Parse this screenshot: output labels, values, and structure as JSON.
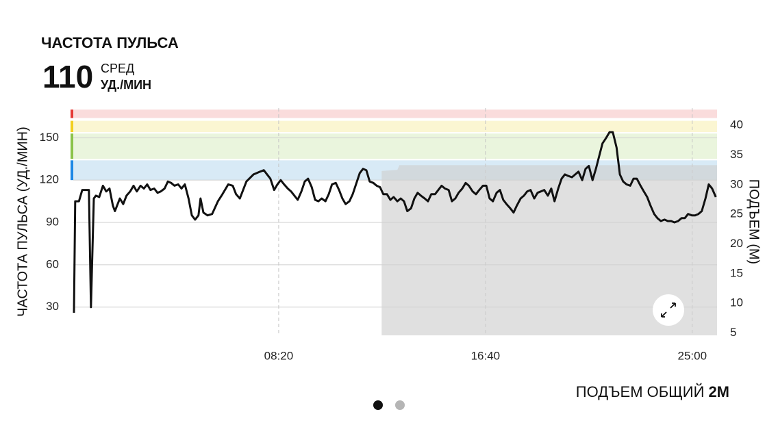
{
  "header": {
    "title": "ЧАСТОТА ПУЛЬСА",
    "avg_value": 110,
    "avg_label": "СРЕД",
    "unit": "УД./МИН"
  },
  "footer": {
    "label": "ПОДЪЕМ ОБЩИЙ",
    "value": "2М"
  },
  "chart_data": {
    "type": "line",
    "y_label": "ЧАСТОТА ПУЛЬСА (УД./МИН)",
    "y2_label": "ПОДЪЕМ (М)",
    "xlim": [
      0,
      1560
    ],
    "ylim": [
      10,
      171
    ],
    "y2lim": [
      4.6,
      42.9
    ],
    "xticks": [
      {
        "value": 500,
        "label": "08:20"
      },
      {
        "value": 1000,
        "label": "16:40"
      },
      {
        "value": 1500,
        "label": "25:00"
      }
    ],
    "yticks": [
      30,
      60,
      90,
      120,
      150
    ],
    "y2ticks": [
      5,
      10,
      15,
      20,
      25,
      30,
      35,
      40
    ],
    "grid": true,
    "zones": [
      {
        "from": 164,
        "to": 170,
        "color": "#fadcdc",
        "marker": "#e53935"
      },
      {
        "from": 154,
        "to": 162,
        "color": "#fbf6d2",
        "marker": "#f2cf1f"
      },
      {
        "from": 135,
        "to": 153,
        "color": "#eaf5dd",
        "marker": "#8bc34a"
      },
      {
        "from": 120,
        "to": 134,
        "color": "#d8eaf6",
        "marker": "#1e88e5"
      }
    ],
    "series": [
      {
        "color": "#111111",
        "x": [
          5,
          8,
          17,
          25,
          41,
          46,
          53,
          58,
          66,
          75,
          83,
          91,
          99,
          104,
          116,
          124,
          132,
          141,
          149,
          157,
          166,
          174,
          182,
          190,
          199,
          207,
          215,
          224,
          232,
          240,
          248,
          257,
          265,
          273,
          282,
          290,
          298,
          306,
          311,
          318,
          328,
          339,
          353,
          364,
          378,
          389,
          397,
          406,
          414,
          422,
          439,
          455,
          464,
          472,
          480,
          489,
          497,
          505,
          513,
          522,
          530,
          538,
          546,
          555,
          563,
          571,
          580,
          588,
          596,
          604,
          613,
          621,
          629,
          638,
          646,
          654,
          662,
          671,
          679,
          687,
          696,
          704,
          712,
          720,
          729,
          737,
          745,
          753,
          762,
          770,
          778,
          787,
          795,
          803,
          811,
          820,
          828,
          836,
          844,
          853,
          861,
          869,
          878,
          886,
          894,
          902,
          911,
          919,
          927,
          935,
          944,
          952,
          960,
          969,
          977,
          985,
          994,
          1002,
          1010,
          1018,
          1027,
          1035,
          1043,
          1051,
          1060,
          1068,
          1076,
          1085,
          1093,
          1101,
          1109,
          1118,
          1126,
          1134,
          1142,
          1151,
          1159,
          1167,
          1176,
          1184,
          1192,
          1200,
          1209,
          1217,
          1225,
          1234,
          1242,
          1250,
          1259,
          1267,
          1275,
          1283,
          1292,
          1300,
          1308,
          1317,
          1325,
          1333,
          1341,
          1350,
          1358,
          1366,
          1375,
          1383,
          1391,
          1399,
          1408,
          1416,
          1424,
          1433,
          1441,
          1449,
          1457,
          1466,
          1474,
          1482,
          1490,
          1499,
          1507,
          1515,
          1523,
          1532,
          1540,
          1548,
          1557
        ],
        "values": [
          26,
          105,
          105,
          113,
          113,
          30,
          107,
          109,
          108,
          116,
          112,
          114,
          102,
          98,
          107,
          103,
          109,
          112,
          116,
          112,
          116,
          114,
          117,
          113,
          114,
          111,
          112,
          114,
          119,
          118,
          116,
          117,
          114,
          117,
          107,
          95,
          92,
          95,
          107,
          97,
          95,
          96,
          105,
          110,
          117,
          116,
          110,
          107,
          113,
          119,
          124,
          126,
          127,
          124,
          121,
          113,
          117,
          120,
          117,
          114,
          112,
          109,
          106,
          112,
          119,
          121,
          115,
          106,
          105,
          107,
          105,
          110,
          117,
          118,
          113,
          107,
          103,
          105,
          110,
          117,
          125,
          128,
          127,
          119,
          118,
          116,
          115,
          110,
          110,
          106,
          108,
          105,
          107,
          105,
          98,
          100,
          107,
          111,
          109,
          107,
          105,
          110,
          110,
          113,
          116,
          114,
          113,
          105,
          107,
          111,
          114,
          118,
          116,
          112,
          110,
          113,
          116,
          116,
          107,
          105,
          111,
          113,
          106,
          103,
          100,
          97,
          102,
          107,
          109,
          112,
          113,
          107,
          111,
          112,
          113,
          109,
          114,
          105,
          114,
          121,
          124,
          123,
          122,
          124,
          126,
          120,
          128,
          130,
          120,
          128,
          137,
          146,
          150,
          154,
          154,
          143,
          124,
          119,
          117,
          116,
          121,
          121,
          116,
          112,
          108,
          102,
          96,
          93,
          91,
          92,
          91,
          91,
          90,
          91,
          93,
          93,
          96,
          95,
          95,
          96,
          98,
          107,
          117,
          114,
          108
        ]
      },
      {
        "axis": "y2",
        "kind": "area",
        "color": "#cfcfcf",
        "x": [
          749,
          787,
          792,
          1560
        ],
        "values": [
          32.3,
          32.5,
          33.3,
          33.3
        ]
      }
    ]
  }
}
